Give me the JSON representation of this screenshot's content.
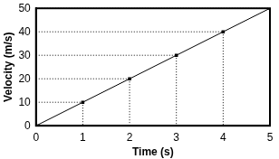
{
  "chart_data": {
    "type": "line",
    "x_label": "Time (s)",
    "y_label": "Velocity (m/s)",
    "x": [
      0,
      1,
      2,
      3,
      4,
      5
    ],
    "values": [
      0,
      10,
      20,
      30,
      40,
      50
    ],
    "color": "#000000",
    "marker": "square",
    "line_style": "solid",
    "xlim": [
      0,
      5
    ],
    "xticks": [
      0,
      1,
      2,
      3,
      4,
      5
    ],
    "ylim": [
      0,
      50
    ],
    "yticks": [
      0,
      10,
      20,
      30,
      40,
      50
    ],
    "grid": false
  }
}
